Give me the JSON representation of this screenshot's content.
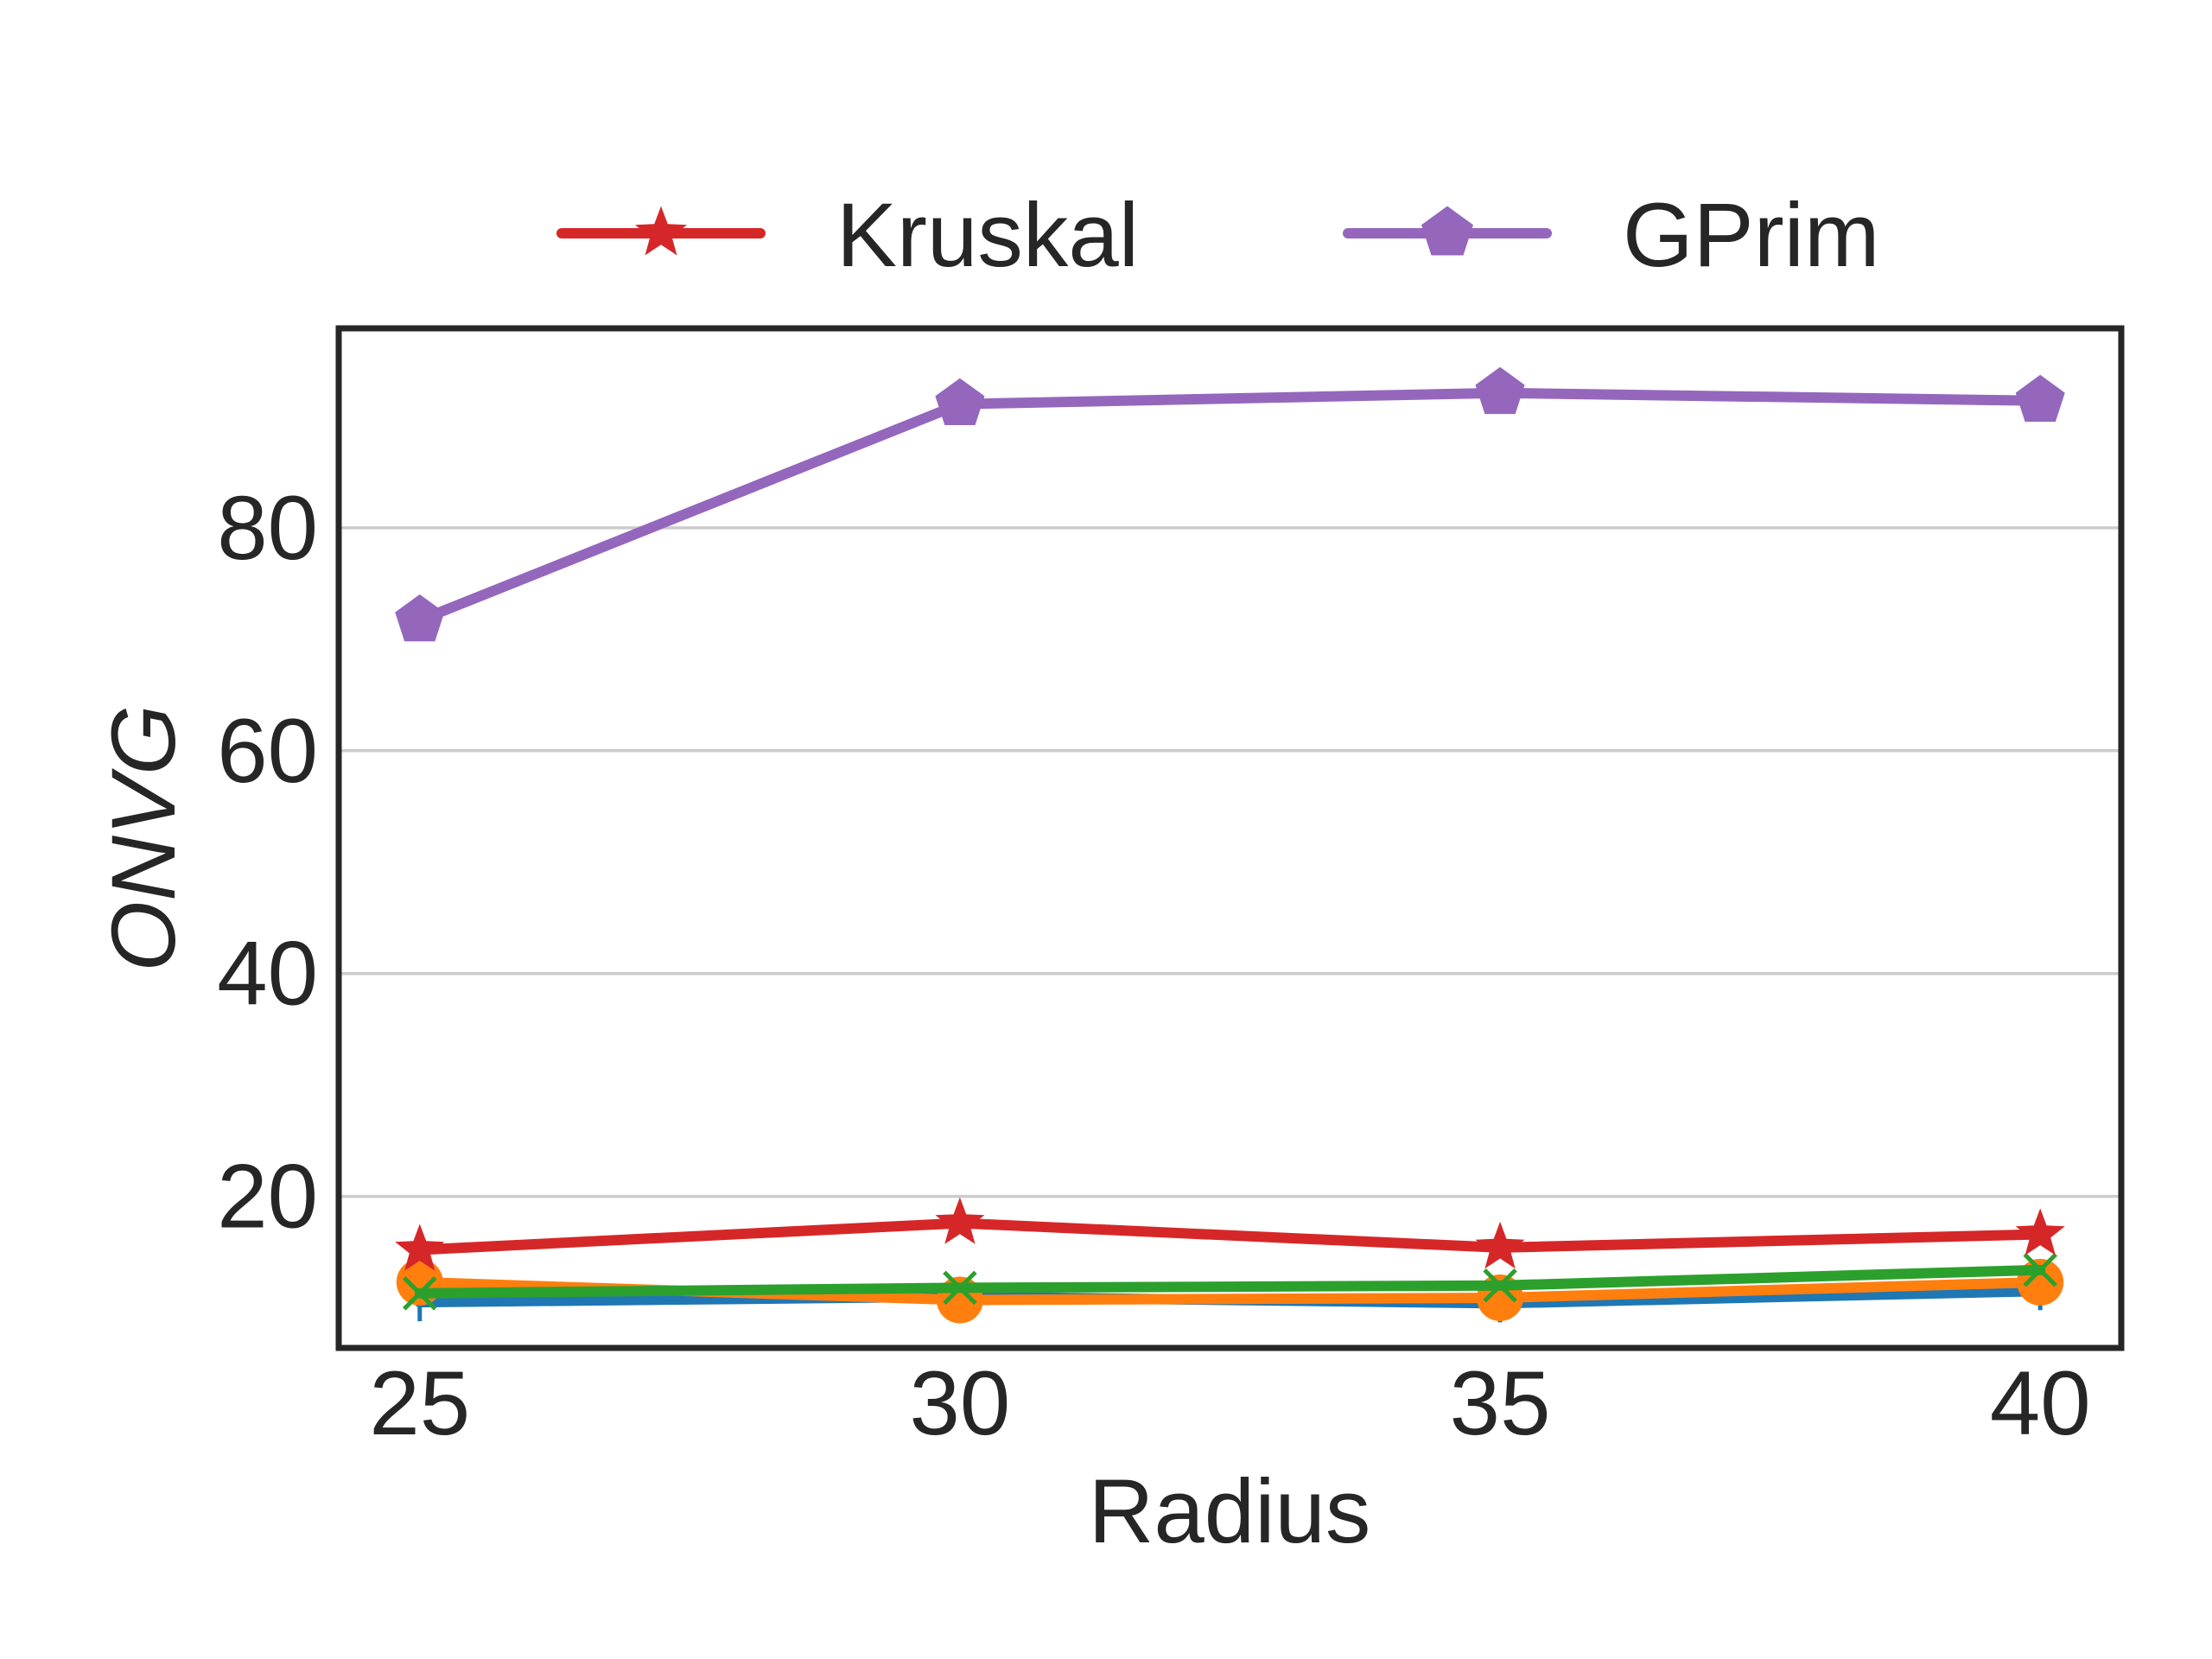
{
  "chart_data": {
    "type": "line",
    "xlabel": "Radius",
    "ylabel": "ONVG",
    "x": [
      25,
      30,
      35,
      40
    ],
    "xticks": [
      "25",
      "30",
      "35",
      "40"
    ],
    "xlim": [
      24.25,
      40.75
    ],
    "ylim": [
      6.4,
      97.9
    ],
    "yticks": [
      "20",
      "40",
      "60",
      "80"
    ],
    "grid": "horizontal",
    "legend_position": "top",
    "series": [
      {
        "name": "",
        "color": "#1f77b4",
        "marker": "tri_down",
        "values": [
          10.5,
          11.0,
          10.4,
          11.5
        ]
      },
      {
        "name": "",
        "color": "#ff7f0e",
        "marker": "circle",
        "values": [
          12.3,
          10.7,
          10.9,
          12.3
        ]
      },
      {
        "name": "",
        "color": "#2ca02c",
        "marker": "x",
        "values": [
          11.3,
          11.8,
          12.0,
          13.4
        ]
      },
      {
        "name": "Kruskal",
        "color": "#d62728",
        "marker": "star",
        "values": [
          15.2,
          17.6,
          15.4,
          16.6
        ]
      },
      {
        "name": "GPrim",
        "color": "#9467bd",
        "marker": "pentagon",
        "values": [
          71.7,
          91.1,
          92.1,
          91.4
        ]
      }
    ],
    "legend": [
      {
        "label": "Kruskal",
        "color": "#d62728",
        "marker": "star"
      },
      {
        "label": "GPrim",
        "color": "#9467bd",
        "marker": "pentagon"
      }
    ]
  }
}
